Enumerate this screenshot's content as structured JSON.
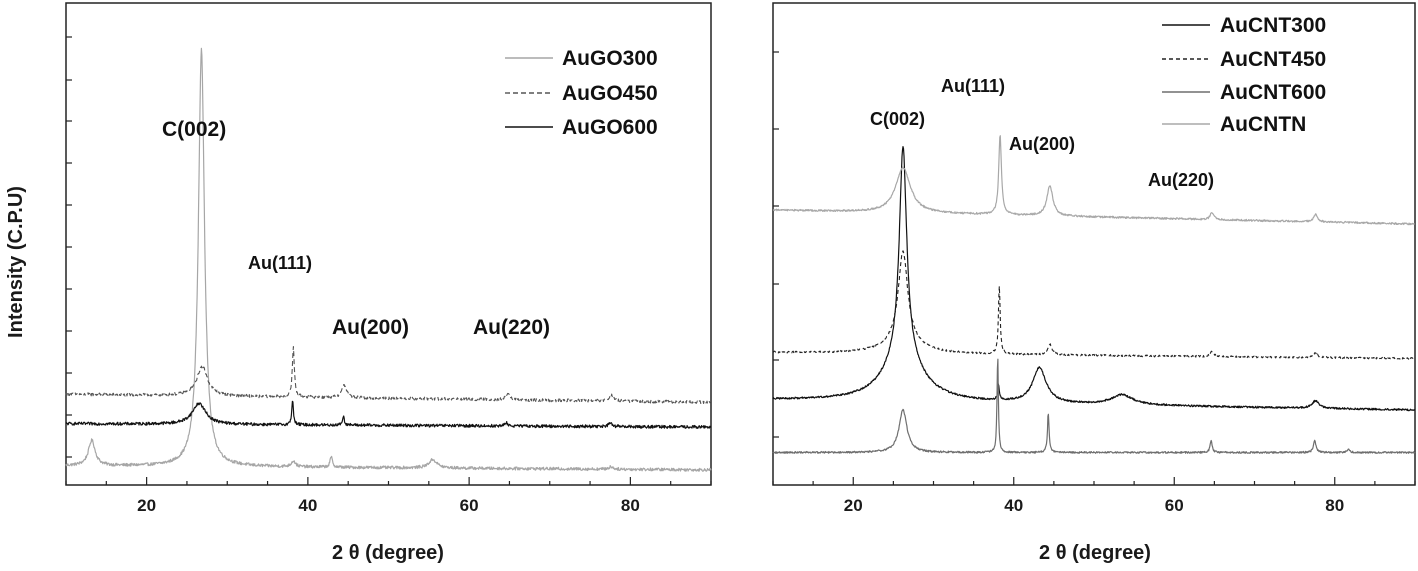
{
  "chart_data": [
    {
      "type": "line",
      "xlabel": "2 θ (degree)",
      "ylabel": "Intensity (C.P.U)",
      "xlim": [
        10,
        90
      ],
      "xticks": [
        20,
        40,
        60,
        80
      ],
      "y_tick_labels": false,
      "legend_position": "top-right",
      "grid": false,
      "series": [
        {
          "name": "AuGO300",
          "color": "#a6a6a6",
          "dash": "solid",
          "baseline": 0.05,
          "slope": -0.0006,
          "peaks": [
            [
              13.2,
              0.3,
              0.5
            ],
            [
              26.8,
              4.95,
              0.45
            ],
            [
              38.2,
              0.07,
              0.3
            ],
            [
              42.9,
              0.12,
              0.18
            ],
            [
              55.5,
              0.1,
              0.6
            ],
            [
              77.6,
              0.03,
              0.3
            ]
          ]
        },
        {
          "name": "AuGO450",
          "color": "#555555",
          "dash": "5,3",
          "baseline": 0.9,
          "slope": -0.0012,
          "peaks": [
            [
              26.9,
              0.35,
              0.8
            ],
            [
              38.2,
              0.6,
              0.15
            ],
            [
              44.5,
              0.15,
              0.35
            ],
            [
              64.8,
              0.08,
              0.25
            ],
            [
              77.6,
              0.07,
              0.3
            ]
          ]
        },
        {
          "name": "AuGO600",
          "color": "#111111",
          "dash": "solid",
          "baseline": 0.55,
          "slope": -0.0005,
          "peaks": [
            [
              26.5,
              0.25,
              1.0
            ],
            [
              38.1,
              0.3,
              0.12
            ],
            [
              44.4,
              0.1,
              0.15
            ],
            [
              64.6,
              0.04,
              0.2
            ],
            [
              77.5,
              0.04,
              0.25
            ]
          ]
        }
      ],
      "annotations": [
        "C(002)",
        "Au(111)",
        "Au(200)",
        "Au(220)"
      ]
    },
    {
      "type": "line",
      "xlabel": "2 θ (degree)",
      "ylabel": "",
      "xlim": [
        10,
        90
      ],
      "xticks": [
        20,
        40,
        60,
        80
      ],
      "y_tick_labels": false,
      "legend_position": "top-right",
      "grid": false,
      "series": [
        {
          "name": "AuCNT300",
          "color": "#111111",
          "dash": "solid",
          "baseline": 1.1,
          "slope": -0.0025,
          "peaks": [
            [
              26.2,
              4.2,
              0.55
            ],
            [
              26.2,
              0.9,
              2.8
            ],
            [
              38.1,
              0.3,
              0.12
            ],
            [
              43.2,
              0.7,
              1.0
            ],
            [
              53.5,
              0.2,
              1.6
            ],
            [
              77.6,
              0.15,
              0.5
            ]
          ]
        },
        {
          "name": "AuCNT450",
          "color": "#222222",
          "dash": "4,3",
          "baseline": 2.05,
          "slope": -0.0015,
          "peaks": [
            [
              26.2,
              1.8,
              0.7
            ],
            [
              26.2,
              0.25,
              2.5
            ],
            [
              38.2,
              1.35,
              0.13
            ],
            [
              44.5,
              0.22,
              0.3
            ],
            [
              64.7,
              0.1,
              0.25
            ],
            [
              77.6,
              0.1,
              0.3
            ]
          ]
        },
        {
          "name": "AuCNT600",
          "color": "#6e6e6e",
          "dash": "solid",
          "baseline": 0.05,
          "slope": 0.0,
          "peaks": [
            [
              26.2,
              0.85,
              0.6
            ],
            [
              38.0,
              1.95,
              0.1
            ],
            [
              44.3,
              0.8,
              0.12
            ],
            [
              64.6,
              0.25,
              0.15
            ],
            [
              77.5,
              0.25,
              0.18
            ],
            [
              81.7,
              0.07,
              0.2
            ]
          ]
        },
        {
          "name": "AuCNTN",
          "color": "#a8a8a8",
          "dash": "solid",
          "baseline": 4.9,
          "slope": -0.0035,
          "peaks": [
            [
              26.2,
              0.9,
              1.1
            ],
            [
              38.3,
              1.6,
              0.2
            ],
            [
              44.5,
              0.6,
              0.45
            ],
            [
              64.7,
              0.15,
              0.25
            ],
            [
              77.6,
              0.15,
              0.3
            ]
          ]
        }
      ],
      "annotations": [
        "C(002)",
        "Au(111)",
        "Au(200)",
        "Au(220)"
      ]
    }
  ]
}
